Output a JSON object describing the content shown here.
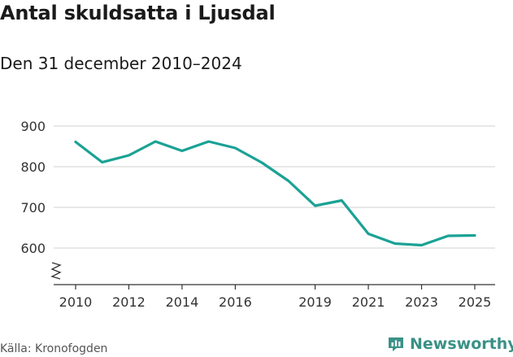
{
  "title": "Antal skuldsatta i Ljusdal",
  "subtitle": "Den 31 december 2010–2024",
  "source": "Källa: Kronofogden",
  "brand": {
    "name": "Newsworthy",
    "icon": "newsworthy-logo-icon"
  },
  "colors": {
    "line": "#1aa295",
    "grid": "#d9d9d9",
    "brand": "#3a9186"
  },
  "chart_data": {
    "type": "line",
    "x": [
      2010,
      2011,
      2012,
      2013,
      2014,
      2015,
      2016,
      2017,
      2018,
      2019,
      2020,
      2021,
      2022,
      2023,
      2024,
      2025
    ],
    "series": [
      {
        "values": [
          861,
          811,
          828,
          862,
          839,
          862,
          846,
          810,
          765,
          704,
          717,
          635,
          611,
          607,
          630,
          631
        ]
      }
    ],
    "xticks": [
      "2010",
      "2012",
      "2014",
      "2016",
      "2019",
      "2021",
      "2023",
      "2025"
    ],
    "xtick_values": [
      2010,
      2012,
      2014,
      2016,
      2019,
      2021,
      2023,
      2025
    ],
    "yticks": [
      "600",
      "700",
      "800",
      "900"
    ],
    "ytick_values": [
      600,
      700,
      800,
      900
    ],
    "ylim": [
      520,
      920
    ],
    "xlim": [
      2010,
      2025
    ],
    "axis_break": true,
    "grid": true,
    "legend": "none"
  }
}
